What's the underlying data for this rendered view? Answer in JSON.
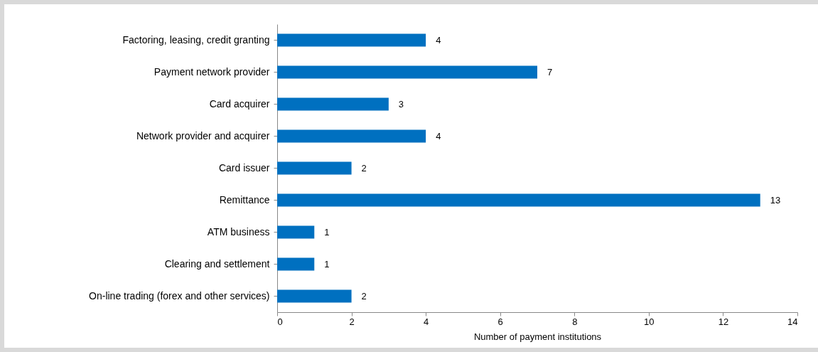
{
  "chart_data": {
    "type": "bar",
    "orientation": "horizontal",
    "xlabel": "Number of payment institutions",
    "categories": [
      "Factoring, leasing, credit granting",
      "Payment network provider",
      "Card acquirer",
      "Network provider and acquirer",
      "Card issuer",
      "Remittance",
      "ATM business",
      "Clearing and settlement",
      "On-line trading (forex and other services)"
    ],
    "values": [
      4,
      7,
      3,
      4,
      2,
      13,
      1,
      1,
      2
    ],
    "color": "#0070c0",
    "xlim": [
      0,
      14
    ],
    "xticks": [
      0,
      2,
      4,
      6,
      8,
      10,
      12,
      14
    ],
    "data_labels": true,
    "grid": false
  }
}
